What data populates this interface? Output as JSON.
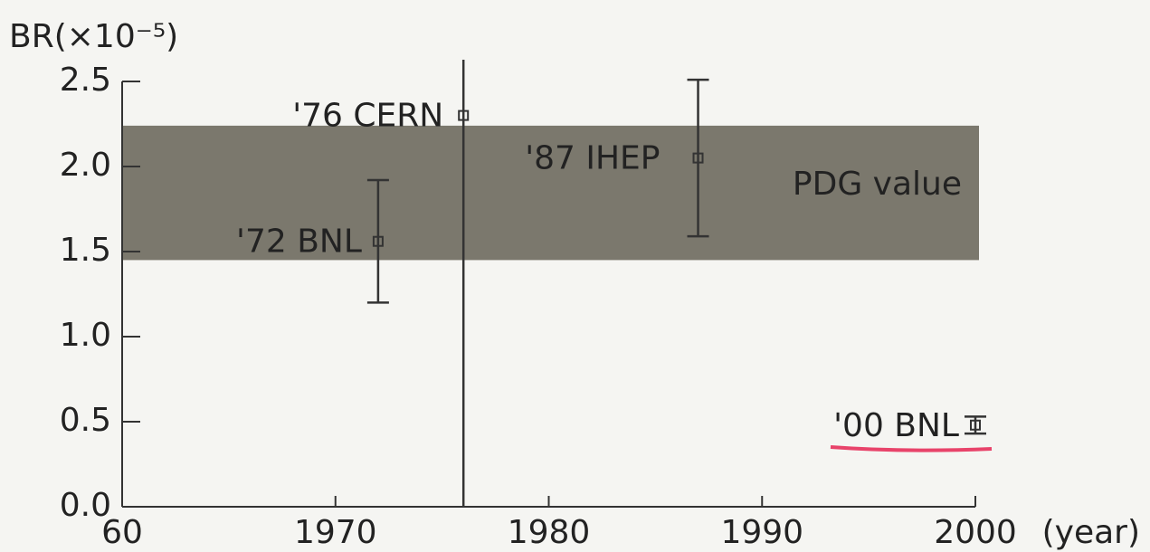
{
  "chart_data": {
    "type": "scatter",
    "y_label": "BR(×10⁻⁵)",
    "x_label": "(year)",
    "xlim": [
      1960,
      2000
    ],
    "xticks": [
      {
        "value": 1960,
        "label": "60"
      },
      1970,
      1980,
      1990,
      2000
    ],
    "ylim": [
      0,
      2.5
    ],
    "yticks": [
      {
        "value": 0,
        "label": "0.0"
      },
      0.5,
      {
        "value": 1,
        "label": "1.0"
      },
      1.5,
      {
        "value": 2,
        "label": "2.0"
      },
      2.5
    ],
    "band": {
      "label": "PDG value",
      "ymin": 1.45,
      "ymax": 2.24,
      "color": "#7b786d"
    },
    "points": [
      {
        "name": "'72 BNL",
        "x": 1972,
        "y": 1.56,
        "error": 0.36
      },
      {
        "name": "'76 CERN",
        "x": 1976,
        "y": 2.3,
        "error": 2.3
      },
      {
        "name": "'87 IHEP",
        "x": 1987,
        "y": 2.05,
        "error": 0.46
      },
      {
        "name": "'00 BNL",
        "x": 2000,
        "y": 0.48,
        "error": 0.05
      }
    ],
    "color": "#333333"
  }
}
